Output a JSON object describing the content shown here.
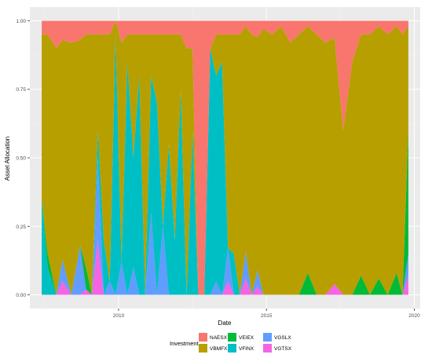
{
  "chart_data": {
    "type": "area",
    "stacked": true,
    "normalized": true,
    "title": "",
    "xlabel": "Date",
    "ylabel": "Asset Allocation",
    "x_tick_labels": [
      "2010",
      "2015",
      "2020"
    ],
    "y_tick_labels": [
      "0.00",
      "0.25",
      "0.50",
      "0.75",
      "1.00"
    ],
    "xlim": [
      2007.0,
      2020.2
    ],
    "ylim": [
      -0.05,
      1.05
    ],
    "grid": true,
    "legend": {
      "title": "Investment",
      "placement": "bottom",
      "entries": [
        "NAESX",
        "VBMFX",
        "VEIEX",
        "VFINX",
        "VGSLX",
        "VGTSX"
      ]
    },
    "colors": {
      "NAESX": "#F8766D",
      "VBMFX": "#B79F00",
      "VEIEX": "#00BA38",
      "VFINX": "#00BFC4",
      "VGSLX": "#619CFF",
      "VGTSX": "#F564E3",
      "panel": "#EBEBEB",
      "grid_major": "#FFFFFF"
    },
    "x": [
      2007.4,
      2007.6,
      2007.9,
      2008.1,
      2008.4,
      2008.7,
      2008.9,
      2009.1,
      2009.3,
      2009.5,
      2009.7,
      2009.9,
      2010.1,
      2010.3,
      2010.5,
      2010.7,
      2010.9,
      2011.1,
      2011.3,
      2011.5,
      2011.7,
      2011.9,
      2012.1,
      2012.3,
      2012.5,
      2012.7,
      2012.9,
      2013.1,
      2013.3,
      2013.5,
      2013.7,
      2013.9,
      2014.1,
      2014.3,
      2014.5,
      2014.7,
      2014.9,
      2015.2,
      2015.5,
      2015.8,
      2016.1,
      2016.4,
      2016.7,
      2017.0,
      2017.3,
      2017.6,
      2017.9,
      2018.2,
      2018.5,
      2018.8,
      2019.1,
      2019.4,
      2019.6,
      2019.8
    ],
    "series": [
      {
        "name": "VGTSX",
        "values": [
          0.0,
          0.0,
          0.0,
          0.05,
          0.0,
          0.0,
          0.02,
          0.0,
          0.2,
          0.0,
          0.0,
          0.0,
          0.0,
          0.0,
          0.0,
          0.0,
          0.0,
          0.0,
          0.0,
          0.0,
          0.0,
          0.0,
          0.0,
          0.0,
          0.0,
          0.0,
          0.0,
          0.0,
          0.0,
          0.0,
          0.05,
          0.0,
          0.0,
          0.06,
          0.0,
          0.03,
          0.0,
          0.0,
          0.0,
          0.0,
          0.0,
          0.0,
          0.0,
          0.0,
          0.04,
          0.0,
          0.0,
          0.0,
          0.0,
          0.0,
          0.0,
          0.0,
          0.0,
          0.07
        ]
      },
      {
        "name": "VGSLX",
        "values": [
          0.0,
          0.0,
          0.0,
          0.08,
          0.0,
          0.18,
          0.0,
          0.0,
          0.3,
          0.0,
          0.05,
          0.0,
          0.12,
          0.0,
          0.1,
          0.0,
          0.0,
          0.3,
          0.0,
          0.25,
          0.0,
          0.0,
          0.0,
          0.0,
          0.0,
          0.0,
          0.0,
          0.0,
          0.05,
          0.0,
          0.12,
          0.0,
          0.0,
          0.1,
          0.0,
          0.06,
          0.0,
          0.0,
          0.0,
          0.0,
          0.0,
          0.0,
          0.0,
          0.0,
          0.0,
          0.0,
          0.0,
          0.0,
          0.0,
          0.0,
          0.0,
          0.0,
          0.0,
          0.08
        ]
      },
      {
        "name": "VFINX",
        "values": [
          0.35,
          0.1,
          0.0,
          0.0,
          0.0,
          0.0,
          0.0,
          0.0,
          0.1,
          0.2,
          0.0,
          0.95,
          0.0,
          0.85,
          0.4,
          0.8,
          0.0,
          0.5,
          0.7,
          0.0,
          0.55,
          0.2,
          0.75,
          0.0,
          0.6,
          0.0,
          0.0,
          0.9,
          0.75,
          0.85,
          0.0,
          0.15,
          0.0,
          0.0,
          0.0,
          0.0,
          0.0,
          0.0,
          0.0,
          0.0,
          0.0,
          0.0,
          0.0,
          0.0,
          0.0,
          0.0,
          0.0,
          0.0,
          0.0,
          0.0,
          0.0,
          0.0,
          0.0,
          0.0
        ]
      },
      {
        "name": "VEIEX",
        "values": [
          0.0,
          0.05,
          0.0,
          0.0,
          0.0,
          0.0,
          0.08,
          0.0,
          0.0,
          0.0,
          0.0,
          0.0,
          0.0,
          0.0,
          0.0,
          0.0,
          0.0,
          0.0,
          0.0,
          0.0,
          0.0,
          0.0,
          0.0,
          0.0,
          0.0,
          0.0,
          0.0,
          0.0,
          0.0,
          0.0,
          0.0,
          0.0,
          0.0,
          0.0,
          0.0,
          0.0,
          0.0,
          0.0,
          0.0,
          0.0,
          0.0,
          0.08,
          0.0,
          0.0,
          0.0,
          0.0,
          0.0,
          0.07,
          0.0,
          0.06,
          0.0,
          0.08,
          0.0,
          0.45
        ]
      },
      {
        "name": "VBMFX",
        "values": [
          0.6,
          0.8,
          0.9,
          0.8,
          0.92,
          0.75,
          0.85,
          0.95,
          0.35,
          0.75,
          0.9,
          0.05,
          0.8,
          0.1,
          0.45,
          0.15,
          0.95,
          0.15,
          0.25,
          0.7,
          0.4,
          0.75,
          0.2,
          0.9,
          0.3,
          0.0,
          0.0,
          0.0,
          0.15,
          0.1,
          0.78,
          0.8,
          0.95,
          0.82,
          0.95,
          0.85,
          0.97,
          0.95,
          0.98,
          0.92,
          0.95,
          0.9,
          0.95,
          0.92,
          0.9,
          0.6,
          0.85,
          0.88,
          0.95,
          0.92,
          0.95,
          0.9,
          0.95,
          0.38
        ]
      },
      {
        "name": "NAESX",
        "values": [
          0.05,
          0.05,
          0.1,
          0.07,
          0.08,
          0.07,
          0.05,
          0.05,
          0.05,
          0.05,
          0.05,
          0.0,
          0.08,
          0.05,
          0.05,
          0.05,
          0.05,
          0.05,
          0.05,
          0.05,
          0.05,
          0.05,
          0.05,
          0.1,
          0.1,
          1.0,
          1.0,
          0.1,
          0.05,
          0.05,
          0.05,
          0.05,
          0.05,
          0.02,
          0.05,
          0.06,
          0.03,
          0.05,
          0.02,
          0.08,
          0.05,
          0.02,
          0.05,
          0.08,
          0.06,
          0.4,
          0.15,
          0.05,
          0.05,
          0.02,
          0.05,
          0.02,
          0.05,
          0.02
        ]
      }
    ]
  }
}
